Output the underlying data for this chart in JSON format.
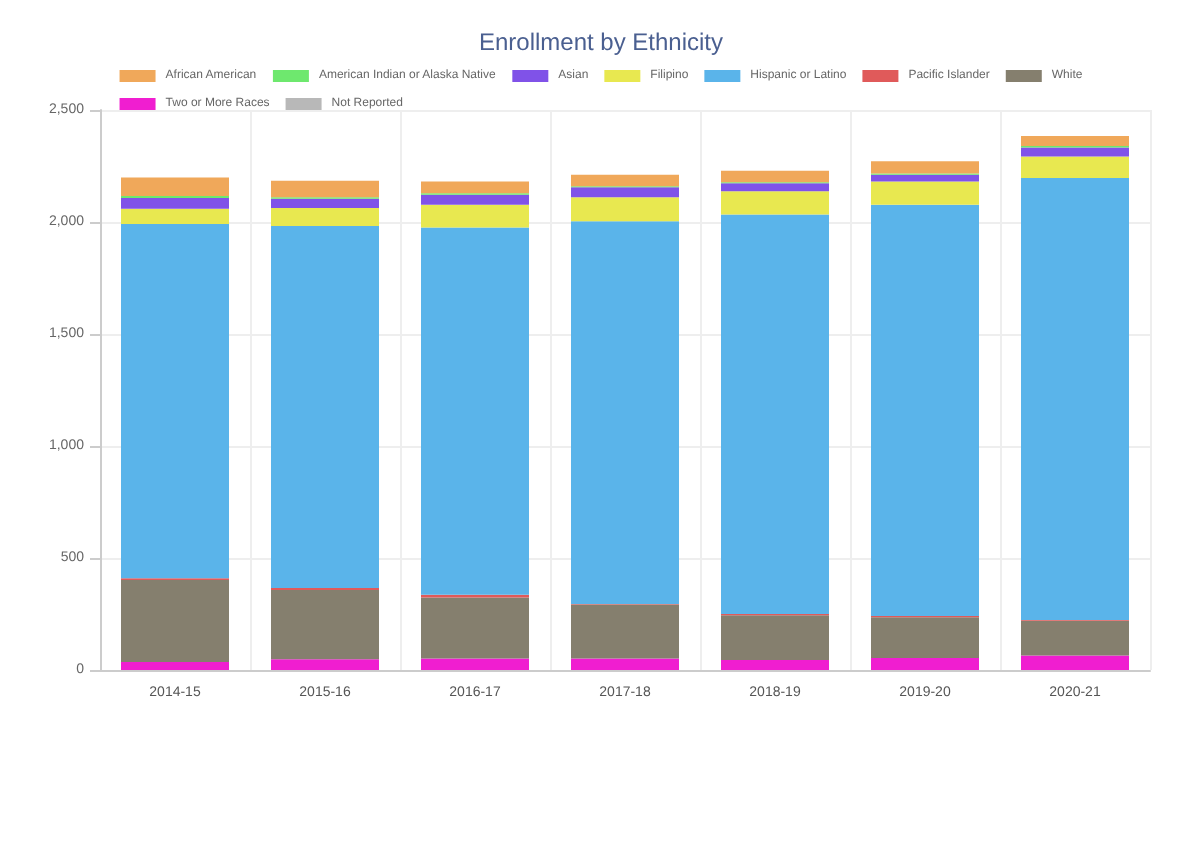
{
  "chart_data": {
    "type": "bar",
    "title": "Enrollment by Ethnicity",
    "stacked": true,
    "grid": true,
    "legend": "top",
    "categories": [
      "2014-15",
      "2015-16",
      "2016-17",
      "2017-18",
      "2018-19",
      "2019-20",
      "2020-21"
    ],
    "ylim": [
      0,
      2500
    ],
    "yticks": [
      0,
      {
        "value": 500,
        "label": "500"
      },
      {
        "value": 1000,
        "label": "1,000"
      },
      {
        "value": 1500,
        "label": "1,500"
      },
      {
        "value": 2000,
        "label": "2,000"
      },
      {
        "value": 2500,
        "label": "2,500"
      }
    ],
    "series": [
      {
        "name": "Not Reported",
        "color": "#b8b8b8",
        "values": [
          0,
          0,
          0,
          0,
          0,
          0,
          0
        ]
      },
      {
        "name": "Two or More Races",
        "color": "#f01ed0",
        "values": [
          36,
          48,
          51,
          51,
          45,
          54,
          65
        ]
      },
      {
        "name": "White",
        "color": "#857f6e",
        "values": [
          366,
          309,
          273,
          241,
          199,
          181,
          155
        ]
      },
      {
        "name": "Pacific Islander",
        "color": "#e05a5a",
        "values": [
          8,
          9,
          12,
          3,
          6,
          6,
          3
        ]
      },
      {
        "name": "Hispanic or Latino",
        "color": "#5ab4ea",
        "values": [
          1581,
          1616,
          1640,
          1708,
          1783,
          1836,
          1973
        ]
      },
      {
        "name": "Filipino",
        "color": "#e8e850",
        "values": [
          68,
          80,
          101,
          107,
          104,
          104,
          96
        ]
      },
      {
        "name": "Asian",
        "color": "#8052e8",
        "values": [
          48,
          42,
          45,
          45,
          36,
          30,
          41
        ]
      },
      {
        "name": "American Indian or Alaska Native",
        "color": "#6ee86e",
        "values": [
          9,
          6,
          6,
          5,
          5,
          6,
          6
        ]
      },
      {
        "name": "African American",
        "color": "#f0a85a",
        "values": [
          83,
          74,
          53,
          51,
          51,
          54,
          45
        ]
      }
    ]
  }
}
